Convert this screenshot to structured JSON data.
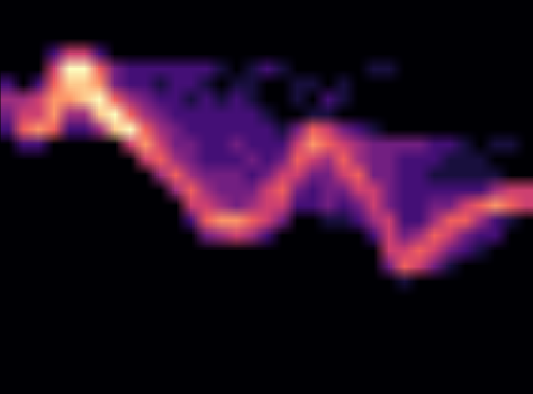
{
  "chart_data": {
    "type": "heatmap",
    "color": "magma",
    "tick_labels": false,
    "zlim": [
      0,
      9
    ],
    "cells": [
      [
        0,
        0,
        0,
        0,
        0,
        0,
        0,
        0,
        0,
        0,
        0,
        0,
        0,
        0,
        0,
        0,
        0,
        0,
        0,
        0,
        0,
        0,
        0,
        0,
        0,
        0,
        0,
        0,
        0,
        0,
        0,
        0,
        0,
        0,
        0
      ],
      [
        0,
        0,
        0,
        0,
        0,
        0,
        0,
        0,
        0,
        0,
        0,
        0,
        0,
        0,
        0,
        0,
        0,
        0,
        0,
        0,
        0,
        0,
        0,
        0,
        0,
        0,
        0,
        0,
        0,
        0,
        0,
        0,
        0,
        0,
        0
      ],
      [
        0,
        0,
        0,
        0,
        0,
        0,
        0,
        0,
        0,
        0,
        0,
        0,
        0,
        0,
        0,
        0,
        0,
        0,
        0,
        0,
        0,
        0,
        0,
        0,
        0,
        0,
        0,
        0,
        0,
        0,
        0,
        0,
        0,
        0,
        0
      ],
      [
        0,
        0,
        0,
        2,
        5,
        5,
        2,
        0,
        0,
        0,
        0,
        0,
        0,
        0,
        0,
        0,
        0,
        0,
        0,
        0,
        0,
        0,
        0,
        0,
        0,
        0,
        0,
        0,
        0,
        0,
        0,
        0,
        0,
        0,
        0
      ],
      [
        0,
        0,
        0,
        5,
        9,
        9,
        6,
        3,
        2,
        2,
        2,
        2,
        2,
        2,
        1,
        0,
        1,
        2,
        1,
        0,
        0,
        0,
        0,
        0,
        1,
        1,
        0,
        0,
        0,
        0,
        0,
        0,
        0,
        0,
        0
      ],
      [
        2,
        0,
        2,
        6,
        8,
        8,
        7,
        3,
        2,
        2,
        1,
        2,
        2,
        1,
        0,
        1,
        1,
        0,
        0,
        1,
        1,
        0,
        1,
        0,
        0,
        0,
        0,
        0,
        0,
        0,
        0,
        0,
        0,
        0,
        0
      ],
      [
        4,
        4,
        5,
        7,
        7,
        8,
        9,
        6,
        4,
        3,
        2,
        2,
        1,
        2,
        1,
        2,
        1,
        0,
        0,
        1,
        0,
        2,
        1,
        0,
        0,
        0,
        0,
        0,
        0,
        0,
        0,
        0,
        0,
        0,
        0
      ],
      [
        3,
        5,
        5,
        7,
        4,
        4,
        8,
        9,
        6,
        4,
        3,
        2,
        2,
        2,
        2,
        2,
        2,
        1,
        0,
        0,
        1,
        1,
        0,
        0,
        0,
        0,
        0,
        0,
        0,
        0,
        0,
        0,
        0,
        0,
        0
      ],
      [
        2,
        6,
        7,
        6,
        2,
        2,
        4,
        8,
        9,
        6,
        4,
        3,
        2,
        2,
        2,
        2,
        2,
        2,
        1,
        3,
        6,
        5,
        3,
        2,
        1,
        0,
        0,
        0,
        0,
        0,
        0,
        0,
        0,
        0,
        0
      ],
      [
        0,
        2,
        2,
        0,
        0,
        0,
        0,
        0,
        5,
        7,
        5,
        3,
        3,
        2,
        2,
        3,
        2,
        2,
        2,
        5,
        7,
        6,
        5,
        4,
        3,
        3,
        3,
        3,
        2,
        2,
        1,
        0,
        1,
        1,
        0
      ],
      [
        0,
        0,
        0,
        0,
        0,
        0,
        0,
        0,
        0,
        5,
        6,
        4,
        3,
        2,
        2,
        2,
        3,
        2,
        3,
        6,
        5,
        4,
        6,
        4,
        3,
        3,
        2,
        2,
        2,
        1,
        1,
        1,
        0,
        0,
        0
      ],
      [
        0,
        0,
        0,
        0,
        0,
        0,
        0,
        0,
        0,
        0,
        4,
        6,
        4,
        3,
        3,
        3,
        2,
        3,
        5,
        5,
        3,
        3,
        5,
        6,
        3,
        3,
        2,
        2,
        1,
        1,
        1,
        1,
        1,
        0,
        0
      ],
      [
        0,
        0,
        0,
        0,
        0,
        0,
        0,
        0,
        0,
        0,
        0,
        4,
        6,
        4,
        3,
        3,
        3,
        5,
        6,
        3,
        2,
        3,
        3,
        5,
        5,
        3,
        2,
        2,
        2,
        2,
        2,
        2,
        4,
        5,
        5
      ],
      [
        0,
        0,
        0,
        0,
        0,
        0,
        0,
        0,
        0,
        0,
        0,
        0,
        5,
        5,
        4,
        3,
        4,
        5,
        5,
        2,
        2,
        3,
        2,
        3,
        5,
        3,
        2,
        2,
        3,
        3,
        5,
        6,
        7,
        6,
        5
      ],
      [
        0,
        0,
        0,
        0,
        0,
        0,
        0,
        0,
        0,
        0,
        0,
        0,
        2,
        6,
        7,
        7,
        6,
        5,
        3,
        0,
        0,
        1,
        1,
        2,
        4,
        5,
        2,
        2,
        4,
        6,
        6,
        4,
        2,
        1,
        0
      ],
      [
        0,
        0,
        0,
        0,
        0,
        0,
        0,
        0,
        0,
        0,
        0,
        0,
        0,
        3,
        4,
        5,
        4,
        2,
        0,
        0,
        0,
        0,
        0,
        0,
        2,
        5,
        3,
        4,
        6,
        5,
        3,
        2,
        2,
        0,
        0
      ],
      [
        0,
        0,
        0,
        0,
        0,
        0,
        0,
        0,
        0,
        0,
        0,
        0,
        0,
        0,
        0,
        0,
        0,
        0,
        0,
        0,
        0,
        0,
        0,
        0,
        0,
        5,
        5,
        6,
        5,
        3,
        2,
        1,
        0,
        0,
        0
      ],
      [
        0,
        0,
        0,
        0,
        0,
        0,
        0,
        0,
        0,
        0,
        0,
        0,
        0,
        0,
        0,
        0,
        0,
        0,
        0,
        0,
        0,
        0,
        0,
        0,
        0,
        3,
        6,
        5,
        3,
        1,
        0,
        0,
        0,
        0,
        0
      ],
      [
        0,
        0,
        0,
        0,
        0,
        0,
        0,
        0,
        0,
        0,
        0,
        0,
        0,
        0,
        0,
        0,
        0,
        0,
        0,
        0,
        0,
        0,
        0,
        0,
        0,
        0,
        1,
        0,
        0,
        0,
        0,
        0,
        0,
        0,
        0
      ],
      [
        0,
        0,
        0,
        0,
        0,
        0,
        0,
        0,
        0,
        0,
        0,
        0,
        0,
        0,
        0,
        0,
        0,
        0,
        0,
        0,
        0,
        0,
        0,
        0,
        0,
        0,
        0,
        0,
        0,
        0,
        0,
        0,
        0,
        0,
        0
      ],
      [
        0,
        0,
        0,
        0,
        0,
        0,
        0,
        0,
        0,
        0,
        0,
        0,
        0,
        0,
        0,
        0,
        0,
        0,
        0,
        0,
        0,
        0,
        0,
        0,
        0,
        0,
        0,
        0,
        0,
        0,
        0,
        0,
        0,
        0,
        0
      ],
      [
        0,
        0,
        0,
        0,
        0,
        0,
        0,
        0,
        0,
        0,
        0,
        0,
        0,
        0,
        0,
        0,
        0,
        0,
        0,
        0,
        0,
        0,
        0,
        0,
        0,
        0,
        0,
        0,
        0,
        0,
        0,
        0,
        0,
        0,
        0
      ],
      [
        0,
        0,
        0,
        0,
        0,
        0,
        0,
        0,
        0,
        0,
        0,
        0,
        0,
        0,
        0,
        0,
        0,
        0,
        0,
        0,
        0,
        0,
        0,
        0,
        0,
        0,
        0,
        0,
        0,
        0,
        0,
        0,
        0,
        0,
        0
      ],
      [
        0,
        0,
        0,
        0,
        0,
        0,
        0,
        0,
        0,
        0,
        0,
        0,
        0,
        0,
        0,
        0,
        0,
        0,
        0,
        0,
        0,
        0,
        0,
        0,
        0,
        0,
        0,
        0,
        0,
        0,
        0,
        0,
        0,
        0,
        0
      ],
      [
        0,
        0,
        0,
        0,
        0,
        0,
        0,
        0,
        0,
        0,
        0,
        0,
        0,
        0,
        0,
        0,
        0,
        0,
        0,
        0,
        0,
        0,
        0,
        0,
        0,
        0,
        0,
        0,
        0,
        0,
        0,
        0,
        0,
        0,
        0
      ],
      [
        0,
        0,
        0,
        0,
        0,
        0,
        0,
        0,
        0,
        0,
        0,
        0,
        0,
        0,
        0,
        0,
        0,
        0,
        0,
        0,
        0,
        0,
        0,
        0,
        0,
        0,
        0,
        0,
        0,
        0,
        0,
        0,
        0,
        0,
        0
      ]
    ]
  }
}
